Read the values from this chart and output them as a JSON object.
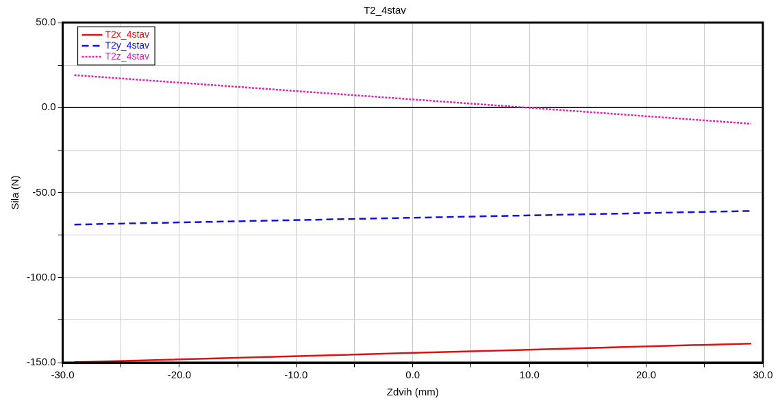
{
  "chart_data": {
    "type": "line",
    "title": "T2_4stav",
    "xlabel": "Zdvih (mm)",
    "ylabel": "Sila (N)",
    "x": [
      -29,
      0,
      29
    ],
    "series": [
      {
        "name": "T2x_4stav",
        "color": "#e01010",
        "line_style": "solid",
        "values": [
          -149.8,
          -144.3,
          -138.8
        ]
      },
      {
        "name": "T2y_4stav",
        "color": "#1010e0",
        "line_style": "dashed",
        "values": [
          -68.8,
          -64.8,
          -60.8
        ]
      },
      {
        "name": "T2z_4stav",
        "color": "#e020b0",
        "line_style": "dotted",
        "values": [
          19.1,
          4.8,
          -9.5
        ]
      }
    ],
    "xlim": [
      -30,
      30
    ],
    "xticks": [
      {
        "value": -30,
        "label": "-30.0"
      },
      {
        "value": -25,
        "label": null
      },
      {
        "value": -20,
        "label": "-20.0"
      },
      {
        "value": -15,
        "label": null
      },
      {
        "value": -10,
        "label": "-10.0"
      },
      {
        "value": -5,
        "label": null
      },
      {
        "value": 0,
        "label": "0.0"
      },
      {
        "value": 5,
        "label": null
      },
      {
        "value": 10,
        "label": "10.0"
      },
      {
        "value": 15,
        "label": null
      },
      {
        "value": 20,
        "label": "20.0"
      },
      {
        "value": 25,
        "label": null
      },
      {
        "value": 30,
        "label": "30.0"
      }
    ],
    "ylim": [
      -150,
      50
    ],
    "yticks": [
      {
        "value": -150,
        "label": "-150.0"
      },
      {
        "value": -125,
        "label": null
      },
      {
        "value": -100,
        "label": "-100.0"
      },
      {
        "value": -75,
        "label": null
      },
      {
        "value": -50,
        "label": "-50.0"
      },
      {
        "value": -25,
        "label": null
      },
      {
        "value": 0,
        "label": "0.0"
      },
      {
        "value": 25,
        "label": null
      },
      {
        "value": 50,
        "label": "50.0"
      }
    ],
    "ref_lines": [
      {
        "axis": "y",
        "value": 0,
        "color": "#000000"
      }
    ],
    "grid": true,
    "legend": "top left",
    "marker": "none"
  }
}
